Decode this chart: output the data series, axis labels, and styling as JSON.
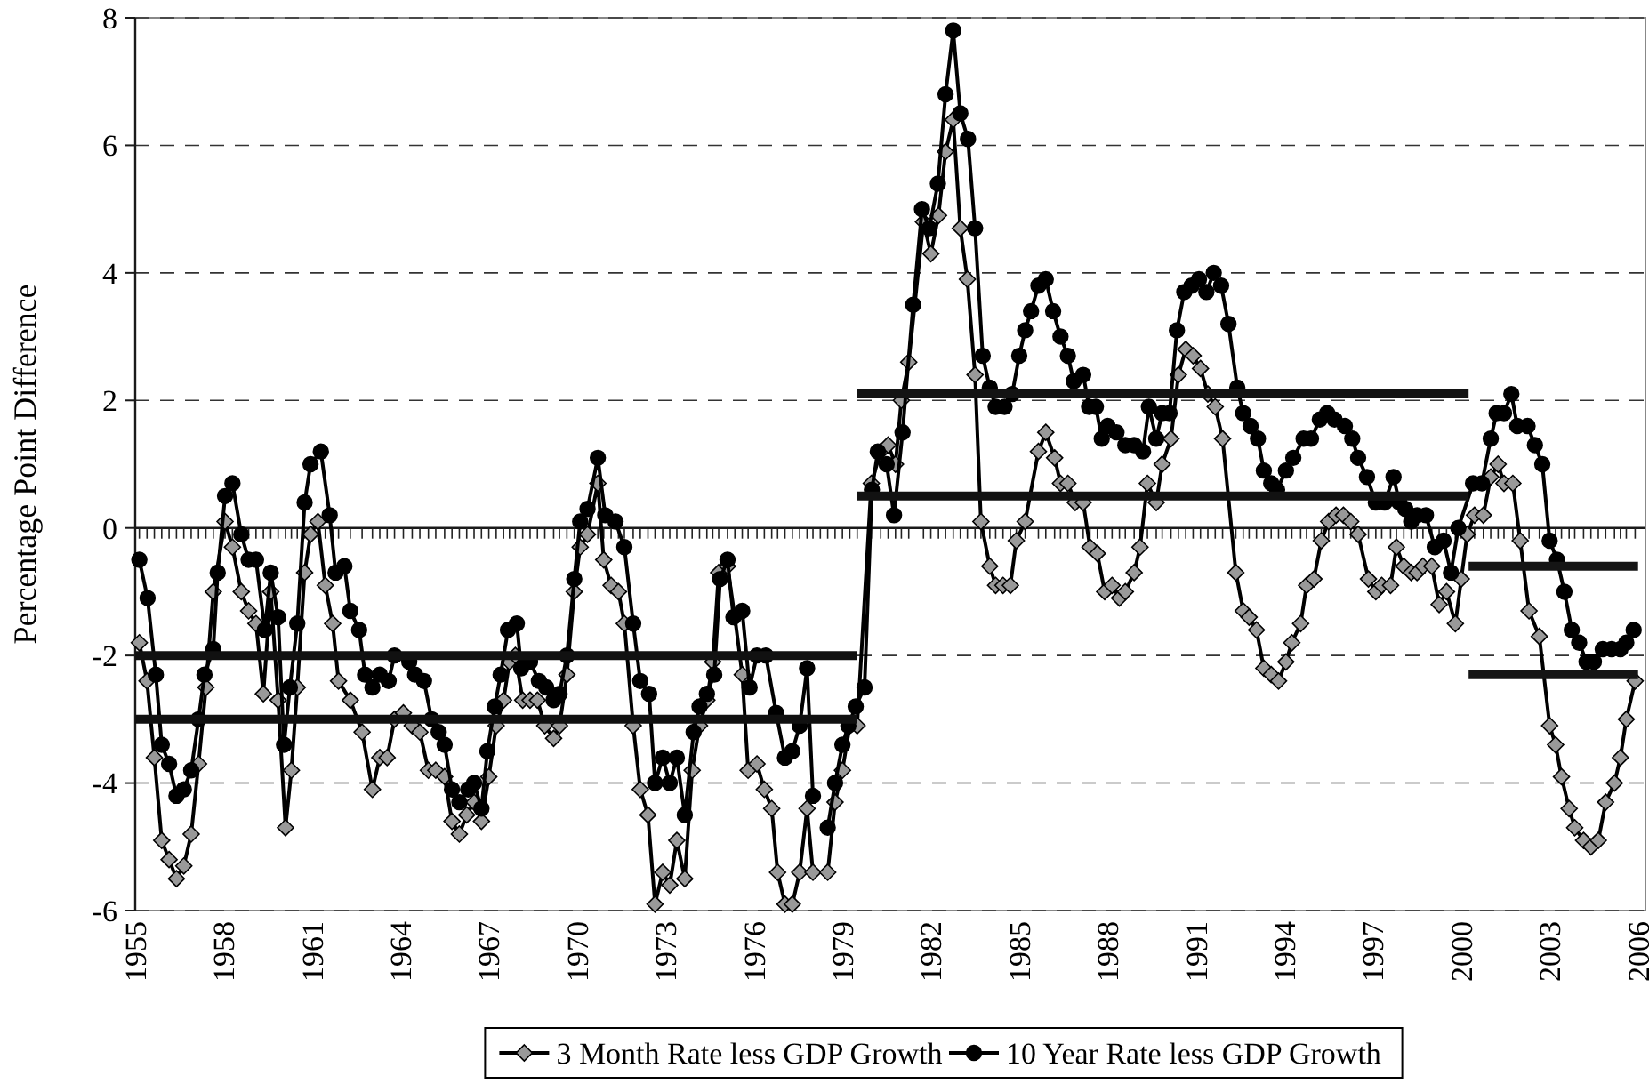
{
  "chart_data": {
    "type": "line",
    "ylabel": "Percentage Point Difference",
    "xlim": [
      1955,
      2006.25
    ],
    "xticks": [
      1955,
      1958,
      1961,
      1964,
      1967,
      1970,
      1973,
      1976,
      1979,
      1982,
      1985,
      1988,
      1991,
      1994,
      1997,
      2000,
      2003,
      2006
    ],
    "ylim": [
      -6,
      8
    ],
    "yticks": [
      -6,
      -4,
      -2,
      0,
      2,
      4,
      6,
      8
    ],
    "grid": "y",
    "legend": "bottom",
    "line_style": "solid",
    "series": [
      {
        "name": "3 Month Rate less GDP Growth",
        "color": "#999999",
        "marker": "diamond",
        "x": [
          1955.14,
          1955.4,
          1955.65,
          1955.9,
          1956.15,
          1956.4,
          1956.65,
          1956.9,
          1957.15,
          1957.4,
          1957.65,
          1958.05,
          1958.3,
          1958.6,
          1958.85,
          1959.1,
          1959.35,
          1959.6,
          1959.85,
          1960.1,
          1960.3,
          1960.5,
          1960.75,
          1960.95,
          1961.2,
          1961.45,
          1961.7,
          1961.9,
          1962.3,
          1962.7,
          1963.05,
          1963.3,
          1963.55,
          1963.8,
          1964.1,
          1964.4,
          1964.66,
          1964.95,
          1965.2,
          1965.5,
          1965.75,
          1966.0,
          1966.25,
          1966.5,
          1966.75,
          1967.0,
          1967.25,
          1967.5,
          1967.7,
          1967.9,
          1968.15,
          1968.4,
          1968.65,
          1968.9,
          1969.2,
          1969.4,
          1969.65,
          1969.9,
          1970.1,
          1970.35,
          1970.7,
          1970.9,
          1971.15,
          1971.4,
          1971.6,
          1971.9,
          1972.14,
          1972.4,
          1972.64,
          1972.9,
          1973.14,
          1973.38,
          1973.65,
          1973.9,
          1974.15,
          1974.4,
          1974.6,
          1974.8,
          1975.1,
          1975.35,
          1975.6,
          1975.8,
          1976.1,
          1976.35,
          1976.6,
          1976.8,
          1977.05,
          1977.3,
          1977.55,
          1977.8,
          1978.0,
          1978.25,
          1978.5,
          1978.75,
          1979.0,
          1979.25,
          1979.5,
          1979.98,
          1980.3,
          1980.55,
          1980.8,
          1981.0,
          1981.25,
          1981.75,
          1982.0,
          1982.26,
          1982.5,
          1982.76,
          1983.0,
          1983.24,
          1983.5,
          1983.7,
          1984.0,
          1984.2,
          1984.45,
          1984.7,
          1984.9,
          1985.2,
          1985.65,
          1985.9,
          1986.2,
          1986.4,
          1986.65,
          1986.9,
          1987.17,
          1987.4,
          1987.65,
          1987.9,
          1988.15,
          1988.4,
          1988.6,
          1988.9,
          1989.1,
          1989.35,
          1989.65,
          1989.85,
          1990.15,
          1990.4,
          1990.65,
          1990.9,
          1991.15,
          1991.4,
          1991.65,
          1991.9,
          1992.35,
          1992.6,
          1992.8,
          1993.05,
          1993.3,
          1993.55,
          1993.8,
          1994.05,
          1994.25,
          1994.55,
          1994.75,
          1995.0,
          1995.25,
          1995.5,
          1995.75,
          1996.0,
          1996.25,
          1996.5,
          1996.85,
          1997.1,
          1997.3,
          1997.6,
          1997.8,
          1998.05,
          1998.3,
          1998.5,
          1998.7,
          1999.0,
          1999.25,
          1999.5,
          1999.8,
          2000.0,
          2000.2,
          2000.45,
          2000.75,
          2001.0,
          2001.25,
          2001.45,
          2001.75,
          2002.0,
          2002.3,
          2002.65,
          2003.0,
          2003.2,
          2003.4,
          2003.66,
          2003.85,
          2004.15,
          2004.4,
          2004.65,
          2004.9,
          2005.2,
          2005.4,
          2005.6,
          2005.9
        ],
        "values": [
          -1.8,
          -2.4,
          -3.6,
          -4.9,
          -5.2,
          -5.5,
          -5.3,
          -4.8,
          -3.7,
          -2.5,
          -1.0,
          0.1,
          -0.3,
          -1.0,
          -1.3,
          -1.5,
          -2.6,
          -1.0,
          -2.7,
          -4.7,
          -3.8,
          -2.5,
          -0.7,
          -0.1,
          0.1,
          -0.9,
          -1.5,
          -2.4,
          -2.7,
          -3.2,
          -4.1,
          -3.6,
          -3.6,
          -3.0,
          -2.9,
          -3.1,
          -3.2,
          -3.8,
          -3.8,
          -3.9,
          -4.6,
          -4.8,
          -4.5,
          -4.3,
          -4.6,
          -3.9,
          -3.1,
          -2.7,
          -2.1,
          -2.0,
          -2.7,
          -2.7,
          -2.7,
          -3.1,
          -3.3,
          -3.1,
          -2.3,
          -1.0,
          -0.3,
          -0.1,
          0.7,
          -0.5,
          -0.9,
          -1.0,
          -1.5,
          -3.1,
          -4.1,
          -4.5,
          -5.9,
          -5.4,
          -5.6,
          -4.9,
          -5.5,
          -3.8,
          -3.1,
          -2.7,
          -2.1,
          -0.7,
          -0.6,
          -1.4,
          -2.3,
          -3.8,
          -3.7,
          -4.1,
          -4.4,
          -5.4,
          -5.9,
          -5.9,
          -5.4,
          -4.4,
          -5.4,
          null,
          -5.4,
          -4.3,
          -3.8,
          -3.1,
          -3.1,
          0.7,
          1.2,
          1.3,
          1.0,
          2.0,
          2.6,
          4.8,
          4.3,
          4.9,
          5.9,
          6.4,
          4.7,
          3.9,
          2.4,
          0.1,
          -0.6,
          -0.9,
          -0.9,
          -0.9,
          -0.2,
          0.1,
          1.2,
          1.5,
          1.1,
          0.7,
          0.7,
          0.4,
          0.4,
          -0.3,
          -0.4,
          -1.0,
          -0.9,
          -1.1,
          -1.0,
          -0.7,
          -0.3,
          0.7,
          0.4,
          1.0,
          1.4,
          2.4,
          2.8,
          2.7,
          2.5,
          2.1,
          1.9,
          1.4,
          -0.7,
          -1.3,
          -1.4,
          -1.6,
          -2.2,
          -2.3,
          -2.4,
          -2.1,
          -1.8,
          -1.5,
          -0.9,
          -0.8,
          -0.2,
          0.1,
          0.2,
          0.2,
          0.1,
          -0.1,
          -0.8,
          -1.0,
          -0.9,
          -0.9,
          -0.3,
          -0.6,
          -0.7,
          -0.7,
          -0.6,
          -0.6,
          -1.2,
          -1.0,
          -1.5,
          -0.8,
          -0.1,
          0.2,
          0.2,
          0.8,
          1.0,
          0.7,
          0.7,
          -0.2,
          -1.3,
          -1.7,
          -3.1,
          -3.4,
          -3.9,
          -4.4,
          -4.7,
          -4.9,
          -5.0,
          -4.9,
          -4.3,
          -4.0,
          -3.6,
          -3.0,
          -2.4
        ]
      },
      {
        "name": "10 Year Rate less GDP Growth",
        "color": "#000000",
        "marker": "circle",
        "x": [
          1955.14,
          1955.42,
          1955.7,
          1955.9,
          1956.15,
          1956.4,
          1956.65,
          1956.9,
          1957.15,
          1957.35,
          1957.65,
          1957.8,
          1958.05,
          1958.3,
          1958.6,
          1958.85,
          1959.1,
          1959.4,
          1959.6,
          1959.85,
          1960.05,
          1960.25,
          1960.5,
          1960.75,
          1960.95,
          1961.3,
          1961.6,
          1961.8,
          1962.1,
          1962.3,
          1962.6,
          1962.8,
          1963.05,
          1963.3,
          1963.6,
          1963.8,
          1964.3,
          1964.5,
          1964.8,
          1965.06,
          1965.3,
          1965.5,
          1965.75,
          1966.0,
          1966.3,
          1966.5,
          1966.75,
          1966.95,
          1967.2,
          1967.4,
          1967.65,
          1967.95,
          1968.1,
          1968.4,
          1968.7,
          1968.95,
          1969.2,
          1969.4,
          1969.65,
          1969.9,
          1970.1,
          1970.35,
          1970.7,
          1970.95,
          1971.3,
          1971.6,
          1971.9,
          1972.14,
          1972.44,
          1972.64,
          1972.9,
          1973.14,
          1973.38,
          1973.65,
          1973.95,
          1974.15,
          1974.4,
          1974.65,
          1974.85,
          1975.1,
          1975.3,
          1975.6,
          1975.85,
          1976.1,
          1976.4,
          1976.75,
          1977.05,
          1977.3,
          1977.55,
          1977.8,
          1978.0,
          1978.25,
          1978.5,
          1978.75,
          1979.0,
          1979.2,
          1979.45,
          1979.75,
          1980.0,
          1980.2,
          1980.5,
          1980.75,
          1981.04,
          1981.4,
          1981.7,
          1981.95,
          1982.24,
          1982.5,
          1982.76,
          1983.0,
          1983.26,
          1983.5,
          1983.76,
          1984.0,
          1984.2,
          1984.5,
          1984.76,
          1985.0,
          1985.2,
          1985.4,
          1985.65,
          1985.9,
          1986.15,
          1986.4,
          1986.65,
          1986.85,
          1987.17,
          1987.37,
          1987.6,
          1987.8,
          1988.0,
          1988.3,
          1988.6,
          1988.9,
          1989.2,
          1989.4,
          1989.65,
          1989.85,
          1990.1,
          1990.35,
          1990.6,
          1990.85,
          1991.1,
          1991.35,
          1991.6,
          1991.85,
          1992.1,
          1992.4,
          1992.6,
          1992.85,
          1993.1,
          1993.3,
          1993.55,
          1993.75,
          1994.05,
          1994.3,
          1994.65,
          1994.9,
          1995.2,
          1995.45,
          1995.7,
          1996.05,
          1996.3,
          1996.5,
          1996.8,
          1997.1,
          1997.4,
          1997.7,
          1997.9,
          1998.1,
          1998.3,
          1998.5,
          1998.8,
          1999.1,
          1999.4,
          1999.65,
          1999.9,
          2000.4,
          2000.7,
          2001.0,
          2001.2,
          2001.45,
          2001.7,
          2001.9,
          2002.25,
          2002.5,
          2002.75,
          2003.0,
          2003.25,
          2003.5,
          2003.75,
          2004.0,
          2004.25,
          2004.5,
          2004.8,
          2005.1,
          2005.4,
          2005.6,
          2005.85
        ],
        "values": [
          -0.5,
          -1.1,
          -2.3,
          -3.4,
          -3.7,
          -4.2,
          -4.1,
          -3.8,
          -3.0,
          -2.3,
          -1.9,
          -0.7,
          0.5,
          0.7,
          -0.1,
          -0.5,
          -0.5,
          -1.6,
          -0.7,
          -1.4,
          -3.4,
          -2.5,
          -1.5,
          0.4,
          1.0,
          1.2,
          0.2,
          -0.7,
          -0.6,
          -1.3,
          -1.6,
          -2.3,
          -2.5,
          -2.3,
          -2.4,
          -2.0,
          -2.1,
          -2.3,
          -2.4,
          -3.0,
          -3.2,
          -3.4,
          -4.1,
          -4.3,
          -4.1,
          -4.0,
          -4.4,
          -3.5,
          -2.8,
          -2.3,
          -1.6,
          -1.5,
          -2.2,
          -2.1,
          -2.4,
          -2.5,
          -2.7,
          -2.6,
          -2.0,
          -0.8,
          0.1,
          0.3,
          1.1,
          0.2,
          0.1,
          -0.3,
          -1.5,
          -2.4,
          -2.6,
          -4.0,
          -3.6,
          -4.0,
          -3.6,
          -4.5,
          -3.2,
          -2.8,
          -2.6,
          -2.3,
          -0.8,
          -0.5,
          -1.4,
          -1.3,
          -2.5,
          -2.0,
          -2.0,
          -2.9,
          -3.6,
          -3.5,
          -3.1,
          -2.2,
          -4.2,
          null,
          -4.7,
          -4.0,
          -3.4,
          -3.1,
          -2.8,
          -2.5,
          0.6,
          1.2,
          1.0,
          0.2,
          1.5,
          3.5,
          5.0,
          4.7,
          5.4,
          6.8,
          7.8,
          6.5,
          6.1,
          4.7,
          2.7,
          2.2,
          1.9,
          1.9,
          2.1,
          2.7,
          3.1,
          3.4,
          3.8,
          3.9,
          3.4,
          3.0,
          2.7,
          2.3,
          2.4,
          1.9,
          1.9,
          1.4,
          1.6,
          1.5,
          1.3,
          1.3,
          1.2,
          1.9,
          1.4,
          1.8,
          1.8,
          3.1,
          3.7,
          3.8,
          3.9,
          3.7,
          4.0,
          3.8,
          3.2,
          2.2,
          1.8,
          1.6,
          1.4,
          0.9,
          0.7,
          0.6,
          0.9,
          1.1,
          1.4,
          1.4,
          1.7,
          1.8,
          1.7,
          1.6,
          1.4,
          1.1,
          0.8,
          0.4,
          0.4,
          0.8,
          0.4,
          0.3,
          0.1,
          0.2,
          0.2,
          -0.3,
          -0.2,
          -0.7,
          0.0,
          0.7,
          0.7,
          1.4,
          1.8,
          1.8,
          2.1,
          1.6,
          1.6,
          1.3,
          1.0,
          -0.2,
          -0.5,
          -1.0,
          -1.6,
          -1.8,
          -2.1,
          -2.1,
          -1.9,
          -1.9,
          -1.9,
          -1.8,
          -1.6
        ]
      },
      {
        "color": "#101010",
        "marker": "none",
        "x": [
          1955,
          1979.5
        ],
        "values": [
          -3.0,
          -3.0
        ]
      },
      {
        "color": "#111111",
        "marker": "none",
        "x": [
          1955,
          1979.5
        ],
        "values": [
          -2.0,
          -2.0
        ]
      },
      {
        "color": "#121212",
        "marker": "none",
        "x": [
          1979.5,
          2000.25
        ],
        "values": [
          0.5,
          0.5
        ]
      },
      {
        "color": "#131313",
        "marker": "none",
        "x": [
          1979.5,
          2000.25
        ],
        "values": [
          2.1,
          2.1
        ]
      },
      {
        "color": "#141414",
        "marker": "none",
        "x": [
          2000.25,
          2006
        ],
        "values": [
          -2.3,
          -2.3
        ]
      },
      {
        "color": "#151515",
        "marker": "none",
        "x": [
          2000.25,
          2006
        ],
        "values": [
          -0.6,
          -0.6
        ]
      }
    ]
  }
}
